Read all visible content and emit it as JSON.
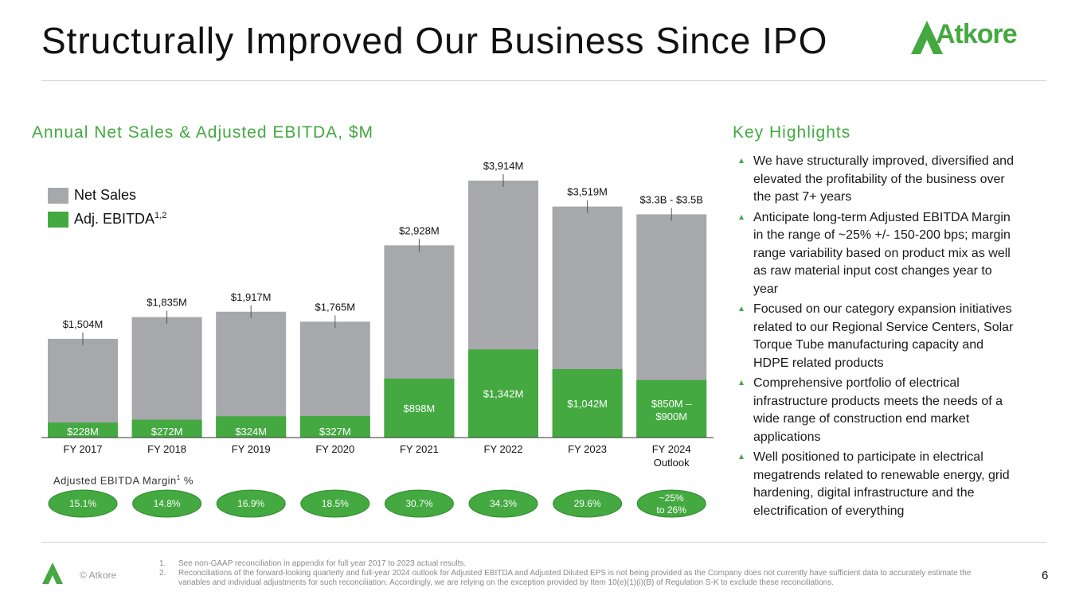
{
  "header": {
    "title": "Structurally Improved Our Business Since IPO",
    "logo_text": "Atkore"
  },
  "chart_section": {
    "heading": "Annual Net Sales & Adjusted EBITDA, $M",
    "legend": {
      "net_sales": "Net Sales",
      "ebitda_label": "Adj. EBITDA",
      "ebitda_sup": "1,2"
    },
    "margin_heading": "Adjusted EBITDA Margin",
    "margin_heading_sup": "1",
    "margin_heading_tail": " %"
  },
  "chart_data": {
    "type": "bar",
    "title": "Annual Net Sales & Adjusted EBITDA, $M",
    "categories": [
      "FY 2017",
      "FY 2018",
      "FY 2019",
      "FY 2020",
      "FY 2021",
      "FY 2022",
      "FY 2023",
      "FY 2024\nOutlook"
    ],
    "series": [
      {
        "name": "Net Sales",
        "values": [
          1504,
          1835,
          1917,
          1765,
          2928,
          3914,
          3519,
          3400
        ],
        "labels": [
          "$1,504M",
          "$1,835M",
          "$1,917M",
          "$1,765M",
          "$2,928M",
          "$3,914M",
          "$3,519M",
          "$3.3B - $3.5B"
        ]
      },
      {
        "name": "Adj. EBITDA",
        "values": [
          228,
          272,
          324,
          327,
          898,
          1342,
          1042,
          875
        ],
        "labels": [
          "$228M",
          "$272M",
          "$324M",
          "$327M",
          "$898M",
          "$1,342M",
          "$1,042M",
          "$850M –\n$900M"
        ]
      }
    ],
    "margins": [
      "15.1%",
      "14.8%",
      "16.9%",
      "18.5%",
      "30.7%",
      "34.3%",
      "29.6%",
      "~25%\nto 26%"
    ],
    "ylim": [
      0,
      4500
    ],
    "xlabel": "",
    "ylabel": "",
    "colors": {
      "net_sales": "#a6a8ab",
      "ebitda": "#43a940",
      "margin_fill": "#43a940",
      "margin_border": "#2f8a2d"
    }
  },
  "highlights": {
    "heading": "Key Highlights",
    "items": [
      "We have structurally improved, diversified and elevated the profitability of the business over the past 7+ years",
      "Anticipate long-term Adjusted EBITDA Margin in the range of ~25% +/- 150-200 bps; margin range variability based on product mix as well as raw material input cost changes year to year",
      "Focused on our category expansion initiatives related to our Regional Service Centers, Solar Torque Tube manufacturing capacity and HDPE related products",
      "Comprehensive portfolio of electrical infrastructure products meets the needs of a wide range of construction end market applications",
      "Well positioned to participate in electrical megatrends related to renewable energy, grid hardening, digital infrastructure and the electrification of everything"
    ]
  },
  "footer": {
    "copyright": "© Atkore",
    "page_number": "6",
    "notes": [
      {
        "num": "1.",
        "text": "See non-GAAP reconciliation in appendix for full year 2017 to 2023 actual results."
      },
      {
        "num": "2.",
        "text": "Reconciliations of the forward-looking quarterly and full-year 2024 outlook for Adjusted EBITDA and Adjusted Diluted EPS is not being provided as the Company does not currently have sufficient data to accurately estimate the variables and individual adjustments for such reconciliation. Accordingly, we are relying on the exception provided by Item 10(e)(1)(i)(B) of Regulation S-K to exclude these reconciliations."
      }
    ]
  }
}
